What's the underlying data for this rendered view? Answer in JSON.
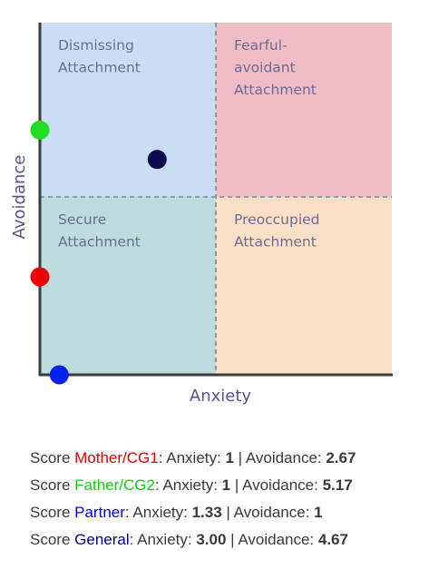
{
  "chart_data": {
    "type": "scatter",
    "xlabel": "Anxiety",
    "ylabel": "Avoidance",
    "xlim": [
      1,
      7
    ],
    "ylim": [
      1,
      7
    ],
    "grid": false,
    "quadrants": [
      {
        "key": "dismissing",
        "lines": [
          "Dismissing",
          "Attachment"
        ],
        "color": "#c9def4"
      },
      {
        "key": "fearful",
        "lines": [
          "Fearful-",
          "avoidant",
          "Attachment"
        ],
        "color": "#f0bdc6"
      },
      {
        "key": "secure",
        "lines": [
          "Secure",
          "Attachment"
        ],
        "color": "#bcdcdd"
      },
      {
        "key": "preoccupied",
        "lines": [
          "Preoccupied",
          "Attachment"
        ],
        "color": "#fce0c6"
      }
    ],
    "series": [
      {
        "name": "Mother/CG1",
        "x": 1,
        "y": 2.67,
        "color": "#ee0000"
      },
      {
        "name": "Father/CG2",
        "x": 1,
        "y": 5.17,
        "color": "#22dd22"
      },
      {
        "name": "Partner",
        "x": 1.33,
        "y": 1,
        "color": "#0022ee"
      },
      {
        "name": "General",
        "x": 3.0,
        "y": 4.67,
        "color": "#0a0a4a"
      }
    ]
  },
  "scores": [
    {
      "prefix": "Score ",
      "name": "Mother/CG1",
      "name_color": "#dd0000",
      "anx_label": ": Anxiety: ",
      "anx": "1",
      "sep": " | Avoidance: ",
      "avo": "2.67"
    },
    {
      "prefix": "Score ",
      "name": "Father/CG2",
      "name_color": "#11cc11",
      "anx_label": ": Anxiety: ",
      "anx": "1",
      "sep": " | Avoidance: ",
      "avo": "5.17"
    },
    {
      "prefix": "Score ",
      "name": "Partner",
      "name_color": "#0000cc",
      "anx_label": ": Anxiety: ",
      "anx": "1.33",
      "sep": " | Avoidance: ",
      "avo": "1"
    },
    {
      "prefix": "Score ",
      "name": "General",
      "name_color": "#00008b",
      "anx_label": ": Anxiety: ",
      "anx": "3.00",
      "sep": " | Avoidance: ",
      "avo": "4.67"
    }
  ]
}
